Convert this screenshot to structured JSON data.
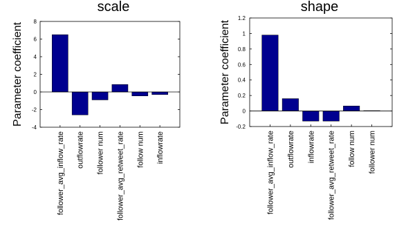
{
  "chart_data": [
    {
      "type": "bar",
      "title": "scale",
      "ylabel": "Parameter coefficient",
      "xlabel": "",
      "categories": [
        "follower_avg_inflow_rate",
        "outflowrate",
        "follower num",
        "follower_avg_retweet_rate",
        "follow num",
        "inflowrate"
      ],
      "values": [
        6.5,
        -2.6,
        -0.9,
        0.85,
        -0.45,
        -0.3
      ],
      "ylim": [
        -4,
        8
      ],
      "yticks": [
        -4,
        -2,
        0,
        2,
        4,
        6,
        8
      ],
      "ytick_labels": [
        "-4",
        "-2",
        "0",
        "2",
        "4",
        "6",
        "8"
      ],
      "bar_color": "#00008f",
      "grid": false
    },
    {
      "type": "bar",
      "title": "shape",
      "ylabel": "Parameter coefficient",
      "xlabel": "",
      "categories": [
        "follower_avg_inflow_rate",
        "outflowrate",
        "inflowrate",
        "follower_avg_retweet_rate",
        "follow num",
        "follower num"
      ],
      "values": [
        0.98,
        0.16,
        -0.13,
        -0.13,
        0.065,
        0.005
      ],
      "ylim": [
        -0.2,
        1.2
      ],
      "yticks": [
        -0.2,
        0,
        0.2,
        0.4,
        0.6,
        0.8,
        1,
        1.2
      ],
      "ytick_labels": [
        "-0.2",
        "0",
        "0.2",
        "0.4",
        "0.6",
        "0.8",
        "1",
        "1.2"
      ],
      "bar_color": "#00008f",
      "grid": false
    }
  ]
}
